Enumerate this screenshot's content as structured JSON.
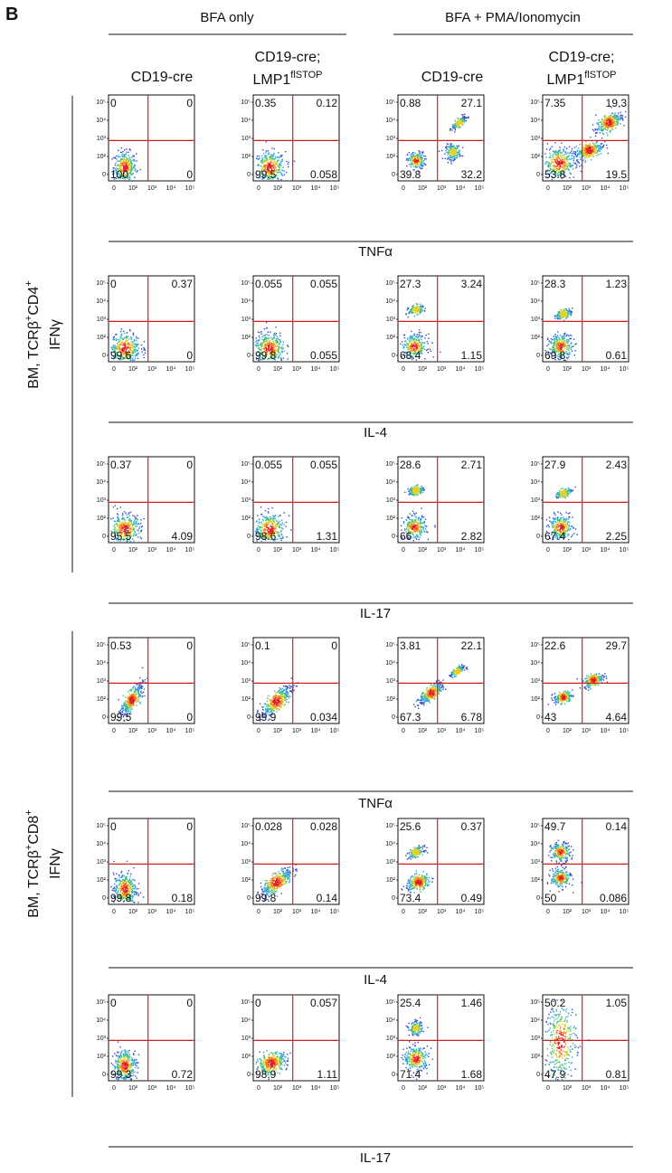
{
  "panel_letter": "B",
  "column_groups": [
    "BFA only",
    "BFA + PMA/Ionomycin"
  ],
  "columns": [
    {
      "line1": "CD19-cre",
      "line2": "",
      "sup": ""
    },
    {
      "line1": "CD19-cre;",
      "line2": "LMP1",
      "sup": "flSTOP"
    },
    {
      "line1": "CD19-cre",
      "line2": "",
      "sup": ""
    },
    {
      "line1": "CD19-cre;",
      "line2": "LMP1",
      "sup": "flSTOP"
    }
  ],
  "row_blocks": [
    {
      "ylabel_pre": "BM, TCRβ",
      "ylabel_sup1": "+",
      "ylabel_mid": "CD4",
      "ylabel_sup2": "+",
      "ylabel_line2": "IFNγ"
    },
    {
      "ylabel_pre": "BM, TCRβ",
      "ylabel_sup1": "+",
      "ylabel_mid": "CD8",
      "ylabel_sup2": "+",
      "ylabel_line2": "IFNγ"
    }
  ],
  "y_tick_labels": [
    "10⁵",
    "10⁴",
    "10³",
    "10²",
    "0"
  ],
  "x_tick_labels": [
    "0",
    "10²",
    "10³",
    "10⁴",
    "10⁵"
  ],
  "colors": {
    "gate": "#cc2222",
    "axis": "#111111",
    "density": [
      "#3050c0",
      "#30a0e0",
      "#40c080",
      "#e0d030",
      "#f08020",
      "#e02020"
    ]
  },
  "chart_data": {
    "type": "table",
    "quadrant_order": [
      "top-left",
      "top-right",
      "bottom-left",
      "bottom-right"
    ],
    "rows": [
      {
        "block": 0,
        "xlabel": "TNFα",
        "plots": [
          {
            "q": [
              "0",
              "0",
              "100",
              "0"
            ],
            "pop": [
              [
                0.1,
                0.1,
                1,
                0
              ]
            ],
            "tight": true
          },
          {
            "q": [
              "0.35",
              "0.12",
              "99.5",
              "0.058"
            ],
            "pop": [
              [
                0.1,
                0.1,
                1,
                0
              ]
            ]
          },
          {
            "q": [
              "0.88",
              "27.1",
              "39.8",
              "32.2"
            ],
            "pop": [
              [
                0.12,
                0.18,
                0.4,
                0
              ],
              [
                0.55,
                0.28,
                0.32,
                0
              ],
              [
                0.62,
                0.62,
                0.27,
                0.7
              ]
            ]
          },
          {
            "q": [
              "7.35",
              "19.3",
              "53.8",
              "19.5"
            ],
            "pop": [
              [
                0.1,
                0.15,
                1,
                0
              ],
              [
                0.45,
                0.3,
                0.8,
                0.3
              ],
              [
                0.68,
                0.62,
                0.8,
                0.5
              ]
            ]
          }
        ]
      },
      {
        "block": 0,
        "xlabel": "IL-4",
        "plots": [
          {
            "q": [
              "0",
              "0.37",
              "99.6",
              "0"
            ],
            "pop": [
              [
                0.1,
                0.1,
                1,
                0
              ]
            ]
          },
          {
            "q": [
              "0.055",
              "0.055",
              "99.8",
              "0.055"
            ],
            "pop": [
              [
                0.1,
                0.1,
                1,
                0
              ]
            ]
          },
          {
            "q": [
              "27.3",
              "3.24",
              "68.4",
              "1.15"
            ],
            "pop": [
              [
                0.1,
                0.12,
                0.7,
                0
              ],
              [
                0.12,
                0.55,
                0.3,
                0.2
              ]
            ]
          },
          {
            "q": [
              "28.3",
              "1.23",
              "69.8",
              "0.61"
            ],
            "pop": [
              [
                0.12,
                0.12,
                0.7,
                0
              ],
              [
                0.15,
                0.5,
                0.3,
                0.3
              ]
            ]
          }
        ]
      },
      {
        "block": 0,
        "xlabel": "IL-17",
        "plots": [
          {
            "q": [
              "0.37",
              "0",
              "95.5",
              "4.09"
            ],
            "pop": [
              [
                0.1,
                0.1,
                1,
                0
              ]
            ]
          },
          {
            "q": [
              "0.055",
              "0.055",
              "98.6",
              "1.31"
            ],
            "pop": [
              [
                0.1,
                0.1,
                1,
                0
              ]
            ]
          },
          {
            "q": [
              "28.6",
              "2.71",
              "66",
              "2.82"
            ],
            "pop": [
              [
                0.1,
                0.12,
                0.66,
                0
              ],
              [
                0.12,
                0.55,
                0.3,
                0.2
              ]
            ]
          },
          {
            "q": [
              "27.9",
              "2.43",
              "67.4",
              "2.25"
            ],
            "pop": [
              [
                0.12,
                0.12,
                0.7,
                0
              ],
              [
                0.15,
                0.52,
                0.3,
                0.3
              ]
            ]
          }
        ]
      },
      {
        "block": 1,
        "xlabel": "TNFα",
        "plots": [
          {
            "q": [
              "0.53",
              "0",
              "99.5",
              "0"
            ],
            "pop": [
              [
                0.18,
                0.22,
                1,
                0.8
              ]
            ],
            "tight": true
          },
          {
            "q": [
              "0.1",
              "0",
              "99.9",
              "0.034"
            ],
            "pop": [
              [
                0.18,
                0.2,
                1,
                0.8
              ]
            ]
          },
          {
            "q": [
              "3.81",
              "22.1",
              "67.3",
              "6.78"
            ],
            "pop": [
              [
                0.3,
                0.3,
                0.7,
                0.7
              ],
              [
                0.6,
                0.55,
                0.25,
                0.5
              ]
            ]
          },
          {
            "q": [
              "22.6",
              "29.7",
              "43",
              "4.64"
            ],
            "pop": [
              [
                0.15,
                0.25,
                0.45,
                0.2
              ],
              [
                0.5,
                0.45,
                0.5,
                0.3
              ]
            ]
          }
        ]
      },
      {
        "block": 1,
        "xlabel": "IL-4",
        "plots": [
          {
            "q": [
              "0",
              "0",
              "99.8",
              "0.18"
            ],
            "pop": [
              [
                0.1,
                0.12,
                1,
                0
              ]
            ],
            "tight": true
          },
          {
            "q": [
              "0.028",
              "0.028",
              "99.8",
              "0.14"
            ],
            "pop": [
              [
                0.18,
                0.2,
                1,
                0.7
              ]
            ]
          },
          {
            "q": [
              "25.6",
              "0.37",
              "73.4",
              "0.49"
            ],
            "pop": [
              [
                0.15,
                0.2,
                0.7,
                0.2
              ],
              [
                0.12,
                0.55,
                0.3,
                0.3
              ]
            ]
          },
          {
            "q": [
              "49.7",
              "0.14",
              "50",
              "0.086"
            ],
            "pop": [
              [
                0.12,
                0.25,
                0.5,
                0
              ],
              [
                0.12,
                0.55,
                0.5,
                0
              ]
            ]
          }
        ]
      },
      {
        "block": 1,
        "xlabel": "IL-17",
        "plots": [
          {
            "q": [
              "0",
              "0",
              "99.3",
              "0.72"
            ],
            "pop": [
              [
                0.1,
                0.12,
                1,
                0
              ]
            ],
            "tight": true
          },
          {
            "q": [
              "0",
              "0.057",
              "98.9",
              "1.11"
            ],
            "pop": [
              [
                0.12,
                0.15,
                1,
                0.2
              ]
            ]
          },
          {
            "q": [
              "25.4",
              "1.46",
              "71.4",
              "1.68"
            ],
            "pop": [
              [
                0.12,
                0.2,
                0.7,
                0
              ],
              [
                0.12,
                0.55,
                0.25,
                0
              ]
            ]
          },
          {
            "q": [
              "50.2",
              "1.05",
              "47.9",
              "0.81"
            ],
            "pop": [
              [
                0.12,
                0.4,
                1,
                0
              ]
            ],
            "tall": true
          }
        ]
      }
    ]
  }
}
